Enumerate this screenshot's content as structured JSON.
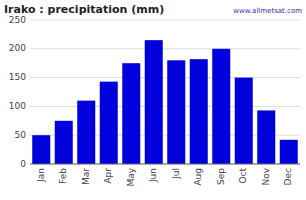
{
  "chart_data": {
    "type": "bar",
    "title": "Irako : precipitation (mm)",
    "categories": [
      "Jan",
      "Feb",
      "Mar",
      "Apr",
      "May",
      "Jun",
      "Jul",
      "Aug",
      "Sep",
      "Oct",
      "Nov",
      "Dec"
    ],
    "values": [
      50,
      75,
      110,
      143,
      175,
      215,
      180,
      182,
      200,
      150,
      93,
      42
    ],
    "color": "#0000dd",
    "ylim": [
      0,
      250
    ],
    "yticks": [
      0,
      50,
      100,
      150,
      200,
      250
    ],
    "grid": true,
    "annotations": [
      "www.allmetsat.com"
    ]
  }
}
